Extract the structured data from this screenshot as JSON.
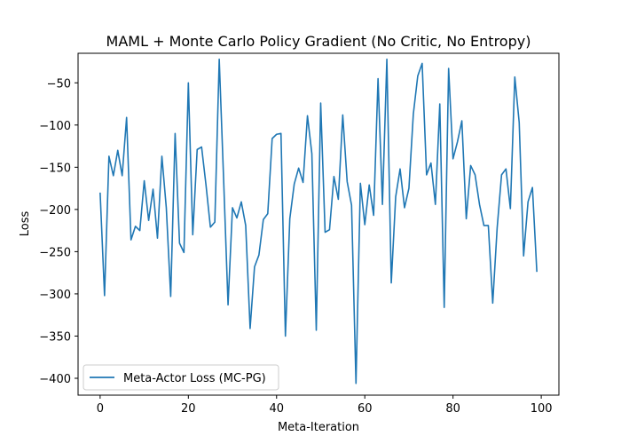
{
  "chart_data": {
    "type": "line",
    "title": "MAML + Monte Carlo Policy Gradient (No Critic, No Entropy)",
    "xlabel": "Meta-Iteration",
    "ylabel": "Loss",
    "xlim": [
      -5,
      104
    ],
    "ylim": [
      -420,
      -15
    ],
    "xticks": [
      0,
      20,
      40,
      60,
      80,
      100
    ],
    "yticks": [
      -400,
      -350,
      -300,
      -250,
      -200,
      -150,
      -100,
      -50
    ],
    "legend_position": "lower-left",
    "series": [
      {
        "name": "Meta-Actor Loss (MC-PG)",
        "color": "#1f77b4",
        "x": [
          0,
          1,
          2,
          3,
          4,
          5,
          6,
          7,
          8,
          9,
          10,
          11,
          12,
          13,
          14,
          15,
          16,
          17,
          18,
          19,
          20,
          21,
          22,
          23,
          24,
          25,
          26,
          27,
          28,
          29,
          30,
          31,
          32,
          33,
          34,
          35,
          36,
          37,
          38,
          39,
          40,
          41,
          42,
          43,
          44,
          45,
          46,
          47,
          48,
          49,
          50,
          51,
          52,
          53,
          54,
          55,
          56,
          57,
          58,
          59,
          60,
          61,
          62,
          63,
          64,
          65,
          66,
          67,
          68,
          69,
          70,
          71,
          72,
          73,
          74,
          75,
          76,
          77,
          78,
          79,
          80,
          81,
          82,
          83,
          84,
          85,
          86,
          87,
          88,
          89,
          90,
          91,
          92,
          93,
          94,
          95,
          96,
          97,
          98,
          99
        ],
        "y": [
          -180,
          -302,
          -137,
          -160,
          -130,
          -160,
          -91,
          -236,
          -220,
          -225,
          -166,
          -213,
          -176,
          -234,
          -137,
          -198,
          -303,
          -110,
          -240,
          -251,
          -50,
          -230,
          -129,
          -126,
          -171,
          -221,
          -215,
          -22,
          -165,
          -313,
          -198,
          -210,
          -191,
          -219,
          -341,
          -268,
          -254,
          -212,
          -205,
          -116,
          -111,
          -110,
          -350,
          -211,
          -170,
          -151,
          -168,
          -89,
          -134,
          -343,
          -74,
          -227,
          -224,
          -161,
          -188,
          -88,
          -167,
          -195,
          -406,
          -169,
          -218,
          -171,
          -207,
          -45,
          -194,
          -22,
          -287,
          -185,
          -152,
          -198,
          -175,
          -87,
          -42,
          -27,
          -159,
          -145,
          -194,
          -75,
          -316,
          -33,
          -140,
          -120,
          -95,
          -211,
          -148,
          -159,
          -194,
          -219,
          -219,
          -311,
          -222,
          -159,
          -152,
          -199,
          -43,
          -97,
          -255,
          -191,
          -174,
          -274
        ]
      }
    ]
  }
}
